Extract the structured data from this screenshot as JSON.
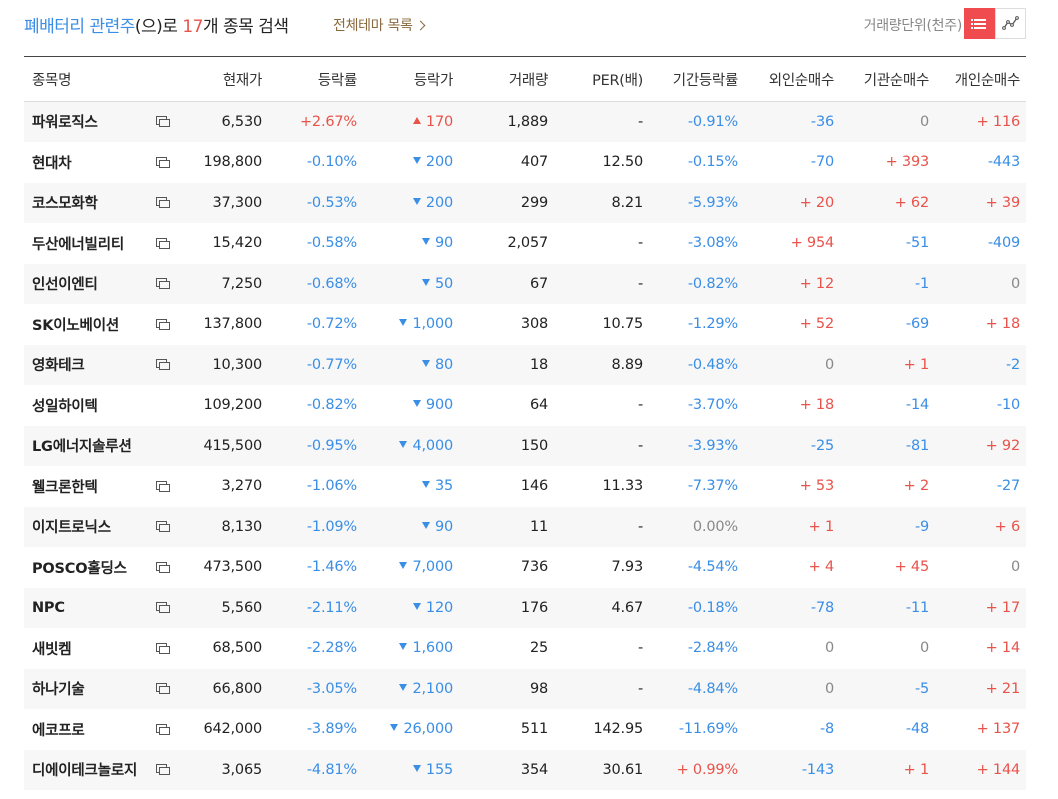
{
  "header": {
    "keyword": "폐배터리 관련주",
    "connector": "(으)로 ",
    "count": "17",
    "suffix": "개 종목 검색",
    "theme_link": "전체테마 목록",
    "unit_label": "거래량단위(천주)"
  },
  "view_icons": [
    "list-icon",
    "line-chart-icon"
  ],
  "columns": [
    "종목명",
    "현재가",
    "등락률",
    "등락가",
    "거래량",
    "PER(배)",
    "기간등락률",
    "외인순매수",
    "기관순매수",
    "개인순매수"
  ],
  "colors": {
    "up": "#e8534b",
    "down": "#3a8ee6",
    "accent": "#f04b4f"
  },
  "rows": [
    {
      "name": "파워로직스",
      "icon": true,
      "price": "6,530",
      "rate": "+2.67%",
      "rate_dir": "up",
      "chg": "170",
      "chg_dir": "up",
      "vol": "1,889",
      "per": "-",
      "period": "-0.91%",
      "period_dir": "down",
      "foreign": "-36",
      "foreign_dir": "down",
      "inst": "0",
      "inst_dir": "flat",
      "indiv": "+ 116",
      "indiv_dir": "up"
    },
    {
      "name": "현대차",
      "icon": true,
      "price": "198,800",
      "rate": "-0.10%",
      "rate_dir": "down",
      "chg": "200",
      "chg_dir": "down",
      "vol": "407",
      "per": "12.50",
      "period": "-0.15%",
      "period_dir": "down",
      "foreign": "-70",
      "foreign_dir": "down",
      "inst": "+ 393",
      "inst_dir": "up",
      "indiv": "-443",
      "indiv_dir": "down"
    },
    {
      "name": "코스모화학",
      "icon": true,
      "price": "37,300",
      "rate": "-0.53%",
      "rate_dir": "down",
      "chg": "200",
      "chg_dir": "down",
      "vol": "299",
      "per": "8.21",
      "period": "-5.93%",
      "period_dir": "down",
      "foreign": "+ 20",
      "foreign_dir": "up",
      "inst": "+ 62",
      "inst_dir": "up",
      "indiv": "+ 39",
      "indiv_dir": "up"
    },
    {
      "name": "두산에너빌리티",
      "icon": true,
      "price": "15,420",
      "rate": "-0.58%",
      "rate_dir": "down",
      "chg": "90",
      "chg_dir": "down",
      "vol": "2,057",
      "per": "-",
      "period": "-3.08%",
      "period_dir": "down",
      "foreign": "+ 954",
      "foreign_dir": "up",
      "inst": "-51",
      "inst_dir": "down",
      "indiv": "-409",
      "indiv_dir": "down"
    },
    {
      "name": "인선이엔티",
      "icon": true,
      "price": "7,250",
      "rate": "-0.68%",
      "rate_dir": "down",
      "chg": "50",
      "chg_dir": "down",
      "vol": "67",
      "per": "-",
      "period": "-0.82%",
      "period_dir": "down",
      "foreign": "+ 12",
      "foreign_dir": "up",
      "inst": "-1",
      "inst_dir": "down",
      "indiv": "0",
      "indiv_dir": "flat"
    },
    {
      "name": "SK이노베이션",
      "icon": true,
      "price": "137,800",
      "rate": "-0.72%",
      "rate_dir": "down",
      "chg": "1,000",
      "chg_dir": "down",
      "vol": "308",
      "per": "10.75",
      "period": "-1.29%",
      "period_dir": "down",
      "foreign": "+ 52",
      "foreign_dir": "up",
      "inst": "-69",
      "inst_dir": "down",
      "indiv": "+ 18",
      "indiv_dir": "up"
    },
    {
      "name": "영화테크",
      "icon": true,
      "price": "10,300",
      "rate": "-0.77%",
      "rate_dir": "down",
      "chg": "80",
      "chg_dir": "down",
      "vol": "18",
      "per": "8.89",
      "period": "-0.48%",
      "period_dir": "down",
      "foreign": "0",
      "foreign_dir": "flat",
      "inst": "+ 1",
      "inst_dir": "up",
      "indiv": "-2",
      "indiv_dir": "down"
    },
    {
      "name": "성일하이텍",
      "icon": false,
      "price": "109,200",
      "rate": "-0.82%",
      "rate_dir": "down",
      "chg": "900",
      "chg_dir": "down",
      "vol": "64",
      "per": "-",
      "period": "-3.70%",
      "period_dir": "down",
      "foreign": "+ 18",
      "foreign_dir": "up",
      "inst": "-14",
      "inst_dir": "down",
      "indiv": "-10",
      "indiv_dir": "down"
    },
    {
      "name": "LG에너지솔루션",
      "icon": false,
      "price": "415,500",
      "rate": "-0.95%",
      "rate_dir": "down",
      "chg": "4,000",
      "chg_dir": "down",
      "vol": "150",
      "per": "-",
      "period": "-3.93%",
      "period_dir": "down",
      "foreign": "-25",
      "foreign_dir": "down",
      "inst": "-81",
      "inst_dir": "down",
      "indiv": "+ 92",
      "indiv_dir": "up"
    },
    {
      "name": "웰크론한텍",
      "icon": true,
      "price": "3,270",
      "rate": "-1.06%",
      "rate_dir": "down",
      "chg": "35",
      "chg_dir": "down",
      "vol": "146",
      "per": "11.33",
      "period": "-7.37%",
      "period_dir": "down",
      "foreign": "+ 53",
      "foreign_dir": "up",
      "inst": "+ 2",
      "inst_dir": "up",
      "indiv": "-27",
      "indiv_dir": "down"
    },
    {
      "name": "이지트로닉스",
      "icon": true,
      "price": "8,130",
      "rate": "-1.09%",
      "rate_dir": "down",
      "chg": "90",
      "chg_dir": "down",
      "vol": "11",
      "per": "-",
      "period": "0.00%",
      "period_dir": "flat",
      "foreign": "+ 1",
      "foreign_dir": "up",
      "inst": "-9",
      "inst_dir": "down",
      "indiv": "+ 6",
      "indiv_dir": "up"
    },
    {
      "name": "POSCO홀딩스",
      "icon": true,
      "price": "473,500",
      "rate": "-1.46%",
      "rate_dir": "down",
      "chg": "7,000",
      "chg_dir": "down",
      "vol": "736",
      "per": "7.93",
      "period": "-4.54%",
      "period_dir": "down",
      "foreign": "+ 4",
      "foreign_dir": "up",
      "inst": "+ 45",
      "inst_dir": "up",
      "indiv": "0",
      "indiv_dir": "flat"
    },
    {
      "name": "NPC",
      "icon": true,
      "price": "5,560",
      "rate": "-2.11%",
      "rate_dir": "down",
      "chg": "120",
      "chg_dir": "down",
      "vol": "176",
      "per": "4.67",
      "period": "-0.18%",
      "period_dir": "down",
      "foreign": "-78",
      "foreign_dir": "down",
      "inst": "-11",
      "inst_dir": "down",
      "indiv": "+ 17",
      "indiv_dir": "up"
    },
    {
      "name": "새빗켐",
      "icon": true,
      "price": "68,500",
      "rate": "-2.28%",
      "rate_dir": "down",
      "chg": "1,600",
      "chg_dir": "down",
      "vol": "25",
      "per": "-",
      "period": "-2.84%",
      "period_dir": "down",
      "foreign": "0",
      "foreign_dir": "flat",
      "inst": "0",
      "inst_dir": "flat",
      "indiv": "+ 14",
      "indiv_dir": "up"
    },
    {
      "name": "하나기술",
      "icon": true,
      "price": "66,800",
      "rate": "-3.05%",
      "rate_dir": "down",
      "chg": "2,100",
      "chg_dir": "down",
      "vol": "98",
      "per": "-",
      "period": "-4.84%",
      "period_dir": "down",
      "foreign": "0",
      "foreign_dir": "flat",
      "inst": "-5",
      "inst_dir": "down",
      "indiv": "+ 21",
      "indiv_dir": "up"
    },
    {
      "name": "에코프로",
      "icon": true,
      "price": "642,000",
      "rate": "-3.89%",
      "rate_dir": "down",
      "chg": "26,000",
      "chg_dir": "down",
      "vol": "511",
      "per": "142.95",
      "period": "-11.69%",
      "period_dir": "down",
      "foreign": "-8",
      "foreign_dir": "down",
      "inst": "-48",
      "inst_dir": "down",
      "indiv": "+ 137",
      "indiv_dir": "up"
    },
    {
      "name": "디에이테크놀로지",
      "icon": true,
      "price": "3,065",
      "rate": "-4.81%",
      "rate_dir": "down",
      "chg": "155",
      "chg_dir": "down",
      "vol": "354",
      "per": "30.61",
      "period": "+ 0.99%",
      "period_dir": "up",
      "foreign": "-143",
      "foreign_dir": "down",
      "inst": "+ 1",
      "inst_dir": "up",
      "indiv": "+ 144",
      "indiv_dir": "up"
    }
  ]
}
